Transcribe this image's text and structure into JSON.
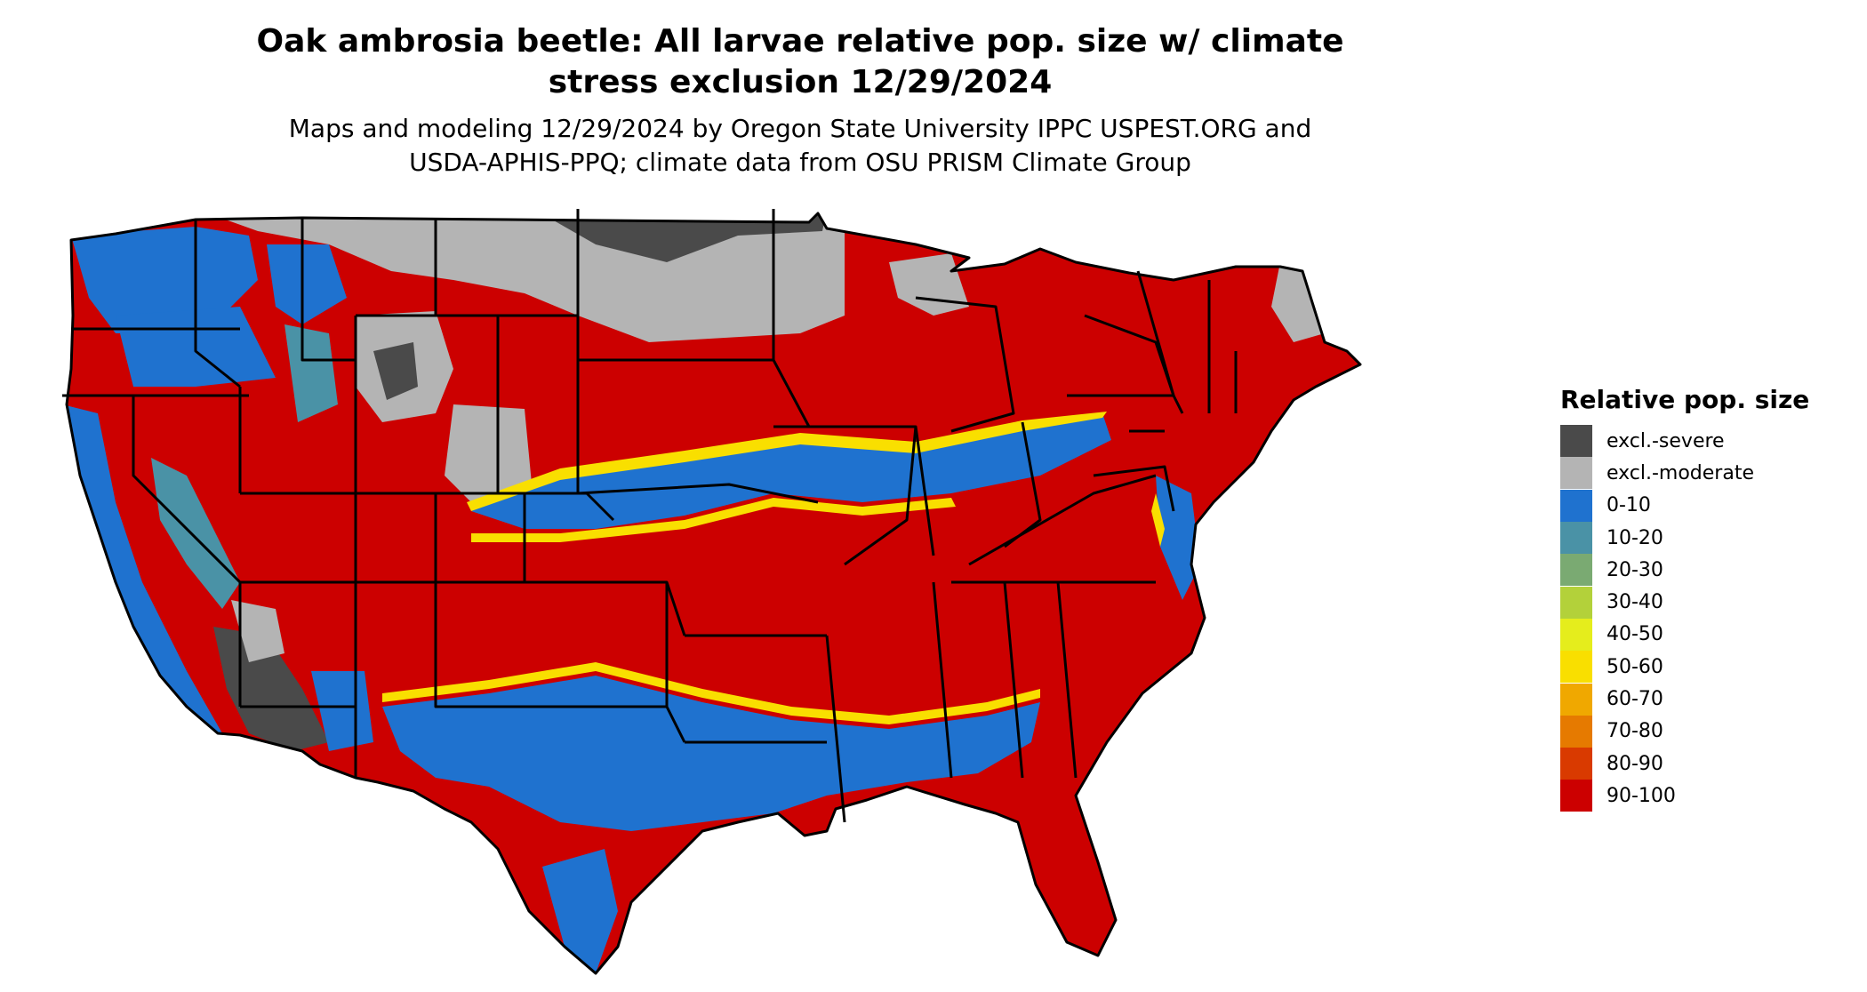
{
  "title": "Oak ambrosia beetle: All larvae relative pop. size w/ climate stress exclusion 12/29/2024",
  "title_lines": [
    "Oak ambrosia beetle: All larvae relative pop. size w/ climate",
    "stress exclusion 12/29/2024"
  ],
  "subtitle_lines": [
    "Maps and modeling 12/29/2024 by Oregon State University IPPC USPEST.ORG and",
    "USDA-APHIS-PPQ; climate data from OSU PRISM Climate Group"
  ],
  "legend": {
    "title": "Relative pop. size",
    "placement": "right",
    "items": [
      {
        "label": "excl.-severe",
        "color": "#4a4a4a"
      },
      {
        "label": "excl.-moderate",
        "color": "#b4b4b4"
      },
      {
        "label": "0-10",
        "color": "#1f72cf"
      },
      {
        "label": "10-20",
        "color": "#4a92a6"
      },
      {
        "label": "20-30",
        "color": "#7aaa72"
      },
      {
        "label": "30-40",
        "color": "#b3d13a"
      },
      {
        "label": "40-50",
        "color": "#e5ed1c"
      },
      {
        "label": "50-60",
        "color": "#f9df00"
      },
      {
        "label": "60-70",
        "color": "#f0a800"
      },
      {
        "label": "70-80",
        "color": "#e67a00"
      },
      {
        "label": "80-90",
        "color": "#d93a00"
      },
      {
        "label": "90-100",
        "color": "#cc0000"
      }
    ]
  },
  "map": {
    "region": "Contiguous United States",
    "boundaries": "state borders",
    "background_color": "#ffffff",
    "border_color": "#000000"
  }
}
